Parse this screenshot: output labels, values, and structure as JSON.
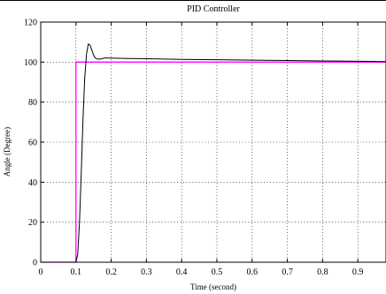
{
  "chart_data": {
    "type": "line",
    "title": "PID Controller",
    "xlabel": "Time (second)",
    "ylabel": "Angle (Degree)",
    "xlim": [
      0,
      0.98
    ],
    "ylim": [
      0,
      120
    ],
    "x_ticks": [
      0,
      0.1,
      0.2,
      0.3,
      0.4,
      0.5,
      0.6,
      0.7,
      0.8,
      0.9
    ],
    "x_tick_labels": [
      "0",
      "0.1",
      "0.2",
      "0.3",
      "0.4",
      "0.5",
      "0.6",
      "0.7",
      "0.8",
      "0.9"
    ],
    "y_ticks": [
      0,
      20,
      40,
      60,
      80,
      100,
      120
    ],
    "y_tick_labels": [
      "0",
      "20",
      "40",
      "60",
      "80",
      "100",
      "120"
    ],
    "grid": true,
    "series": [
      {
        "color": "#ff00ff",
        "x": [
          0,
          0.1,
          0.1,
          0.98
        ],
        "y": [
          0,
          0,
          100,
          100
        ]
      },
      {
        "color": "#000000",
        "x": [
          0,
          0.1,
          0.105,
          0.11,
          0.115,
          0.12,
          0.125,
          0.13,
          0.135,
          0.14,
          0.145,
          0.15,
          0.155,
          0.16,
          0.17,
          0.18,
          0.2,
          0.25,
          0.3,
          0.4,
          0.5,
          0.6,
          0.7,
          0.8,
          0.9,
          0.98
        ],
        "y": [
          0,
          0,
          4,
          20,
          45,
          72,
          92,
          104,
          109,
          108.5,
          106,
          103.5,
          102,
          101.5,
          101.5,
          102,
          102,
          101.8,
          101.7,
          101.4,
          101.2,
          101,
          100.8,
          100.6,
          100.4,
          100.3
        ]
      }
    ]
  }
}
